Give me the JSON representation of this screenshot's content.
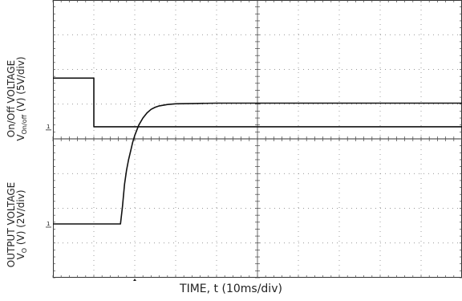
{
  "chart_data": [
    {
      "type": "line",
      "panel": "top",
      "ylabel_line1": "On/Off VOLTAGE",
      "ylabel_line2_prefix": "V",
      "ylabel_line2_sub": "On/off",
      "ylabel_line2_suffix": " (V) (5V/div)",
      "ground_marker": "1",
      "x_divisions": 10,
      "y_divisions": 4,
      "x_per_div_ms": 10,
      "y_per_div_V": 5,
      "ylim_div": [
        0,
        4
      ],
      "series": [
        {
          "x_ms": [
            0,
            10,
            10,
            100
          ],
          "y_div": [
            1.4,
            1.4,
            0.0,
            0.0
          ]
        }
      ]
    },
    {
      "type": "line",
      "panel": "bottom",
      "ylabel_line1": "OUTPUT VOLTAGE",
      "ylabel_line2_prefix": "V",
      "ylabel_line2_sub": "O",
      "ylabel_line2_suffix": " (V) (2V/div)",
      "ground_marker": "1",
      "x_divisions": 10,
      "y_divisions": 4,
      "x_per_div_ms": 10,
      "y_per_div_V": 2,
      "ylim_div": [
        0,
        4
      ],
      "series": [
        {
          "x_ms": [
            0,
            16.5,
            17,
            17.5,
            18,
            18.5,
            19,
            19.5,
            20,
            21,
            22,
            23,
            24,
            25,
            26,
            28,
            30,
            35,
            40,
            100
          ],
          "y_div": [
            0,
            0,
            0.5,
            1.15,
            1.55,
            1.85,
            2.1,
            2.35,
            2.55,
            2.85,
            3.05,
            3.2,
            3.3,
            3.36,
            3.4,
            3.44,
            3.46,
            3.47,
            3.48,
            3.48
          ]
        }
      ]
    }
  ],
  "xlabel": "TIME, t (10ms/div)"
}
